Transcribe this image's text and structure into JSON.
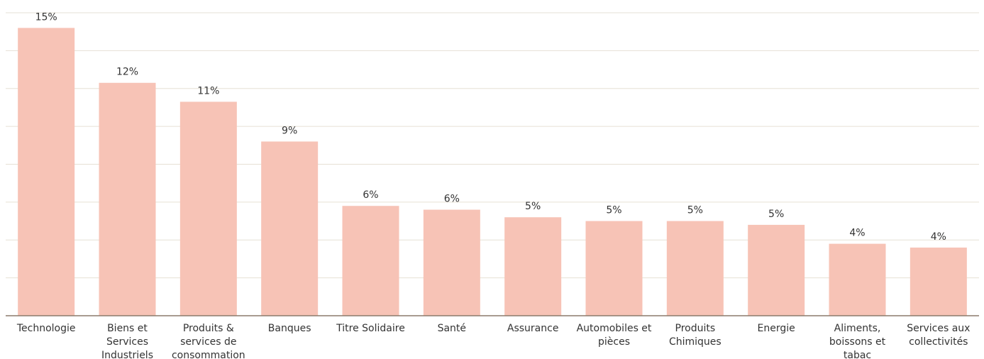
{
  "chart_data": {
    "type": "bar",
    "categories": [
      [
        "Technologie"
      ],
      [
        "Biens et",
        "Services",
        "Industriels"
      ],
      [
        "Produits &",
        "services de",
        "consommation"
      ],
      [
        "Banques"
      ],
      [
        "Titre Solidaire"
      ],
      [
        "Santé"
      ],
      [
        "Assurance"
      ],
      [
        "Automobiles et",
        "pièces"
      ],
      [
        "Produits",
        "Chimiques"
      ],
      [
        "Energie"
      ],
      [
        "Aliments,",
        "boissons et",
        "tabac"
      ],
      [
        "Services aux",
        "collectivités"
      ]
    ],
    "values": [
      15.2,
      12.3,
      11.3,
      9.2,
      5.8,
      5.6,
      5.2,
      5.0,
      5.0,
      4.8,
      3.8,
      3.6
    ],
    "value_labels": [
      "15%",
      "12%",
      "11%",
      "9%",
      "6%",
      "6%",
      "5%",
      "5%",
      "5%",
      "5%",
      "4%",
      "4%"
    ],
    "ylim": [
      0,
      16
    ],
    "grid": true,
    "colors": {
      "bar": "#f7c3b6",
      "grid": "#e6e0d5",
      "axis": "#8c7a6b"
    }
  }
}
